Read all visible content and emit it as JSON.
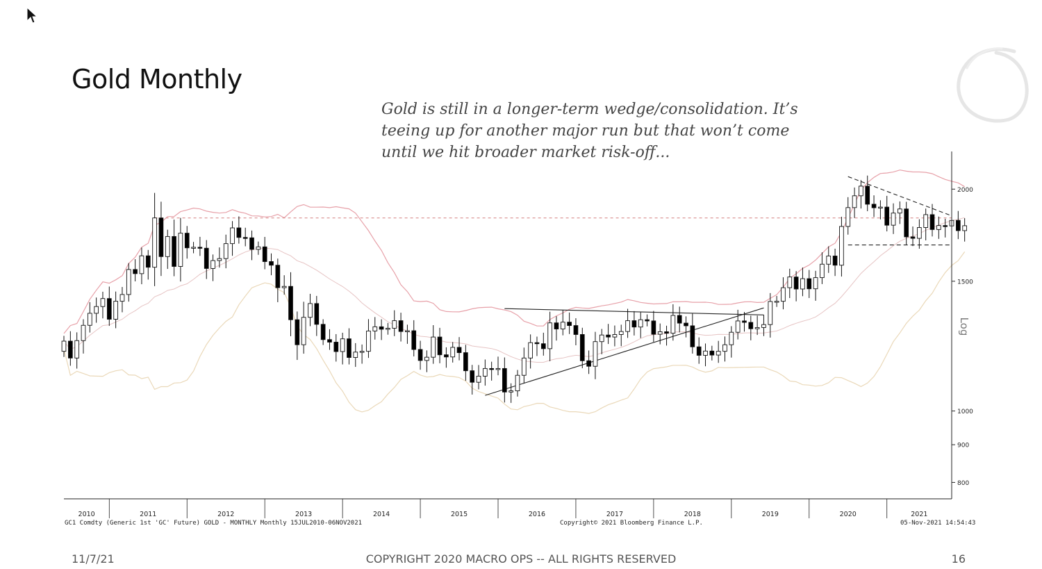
{
  "slide": {
    "title": "Gold Monthly",
    "annotation_lines": [
      "Gold is still in a longer-term wedge/consolidation. It’s",
      "teeing up for another major run but that won’t come",
      "until we hit broader market risk-off..."
    ],
    "footer": {
      "date": "11/7/21",
      "copyright": "COPYRIGHT 2020 MACRO OPS -- ALL RIGHTS RESERVED",
      "page": "16"
    },
    "bloomberg": {
      "security": "GC1 Comdty (Generic 1st 'GC' Future) GOLD - MONTHLY  Monthly 15JUL2010-06NOV2021",
      "copyright": "Copyright© 2021 Bloomberg Finance L.P.",
      "timestamp": "05-Nov-2021 14:54:43"
    }
  },
  "chart_data": {
    "type": "candlestick",
    "title": "Gold Monthly",
    "ylabel": "Log",
    "y_scale": "log",
    "ylim": [
      760,
      2250
    ],
    "y_ticks": [
      {
        "value": 800,
        "label": "800"
      },
      {
        "value": 900,
        "label": "900"
      },
      {
        "value": 1000,
        "label": "1000"
      },
      {
        "value": 1500,
        "label": "1500"
      },
      {
        "value": 2000,
        "label": "2000"
      }
    ],
    "x_labels": [
      "2010",
      "2011",
      "2012",
      "2013",
      "2014",
      "2015",
      "2016",
      "2017",
      "2018",
      "2019",
      "2020",
      "2021"
    ],
    "x_range": [
      "2010-06",
      "2021-11"
    ],
    "colors": {
      "up": "#ffffff",
      "down": "#000000",
      "outline": "#111111",
      "upper_band": "#e7a0a8",
      "middle_band": "#e6c3c3",
      "lower_band": "#ead8b8",
      "trendline": "#222222",
      "resistance": "#d98e8e"
    },
    "monthly_closes": [
      1244,
      1180,
      1246,
      1307,
      1357,
      1386,
      1421,
      1332,
      1409,
      1439,
      1556,
      1536,
      1624,
      1567,
      1828,
      1620,
      1725,
      1571,
      1743,
      1665,
      1668,
      1663,
      1561,
      1600,
      1610,
      1687,
      1772,
      1720,
      1718,
      1657,
      1670,
      1595,
      1577,
      1470,
      1476,
      1330,
      1230,
      1340,
      1399,
      1311,
      1250,
      1240,
      1204,
      1253,
      1182,
      1202,
      1205,
      1284,
      1301,
      1291,
      1295,
      1326,
      1282,
      1285,
      1212,
      1171,
      1183,
      1260,
      1192,
      1184,
      1220,
      1200,
      1134,
      1094,
      1115,
      1142,
      1140,
      1142,
      1061,
      1065,
      1118,
      1180,
      1238,
      1234,
      1215,
      1317,
      1292,
      1320,
      1306,
      1270,
      1170,
      1150,
      1242,
      1268,
      1260,
      1270,
      1282,
      1326,
      1300,
      1330,
      1325,
      1271,
      1281,
      1275,
      1348,
      1316,
      1305,
      1222,
      1190,
      1206,
      1191,
      1205,
      1230,
      1279,
      1325,
      1319,
      1293,
      1298,
      1310,
      1408,
      1409,
      1470,
      1520,
      1464,
      1512,
      1465,
      1517,
      1582,
      1623,
      1577,
      1780,
      1888,
      1959,
      2019,
      1908,
      1887,
      1891,
      1787,
      1856,
      1880,
      1723,
      1715,
      1774,
      1847,
      1763,
      1785,
      1783,
      1814,
      1757,
      1784
    ],
    "trendlines": [
      {
        "name": "lower-rising",
        "from": {
          "x": "2015-11",
          "y": 1050
        },
        "to": {
          "x": "2019-06",
          "y": 1380
        }
      },
      {
        "name": "upper-flat",
        "from": {
          "x": "2016-02",
          "y": 1377
        },
        "to": {
          "x": "2019-06",
          "y": 1350
        }
      },
      {
        "name": "wedge-top",
        "from": {
          "x": "2020-07",
          "y": 2080
        },
        "to": {
          "x": "2021-11",
          "y": 1840
        }
      },
      {
        "name": "wedge-bottom",
        "from": {
          "x": "2020-07",
          "y": 1680
        },
        "to": {
          "x": "2021-11",
          "y": 1680
        }
      },
      {
        "name": "resistance-2011",
        "from": {
          "x": "2011-08",
          "y": 1828
        },
        "to": {
          "x": "2021-11",
          "y": 1828
        }
      }
    ]
  }
}
